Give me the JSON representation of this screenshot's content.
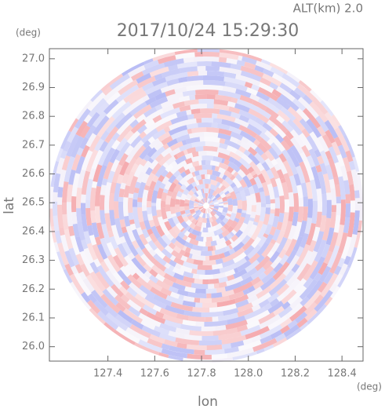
{
  "chart_data": {
    "type": "radar-ppi",
    "title": "2017/10/24 15:29:30",
    "subtitle": "ALT(km) 2.0",
    "x_label": "lon",
    "y_label": "lat",
    "x_unit": "(deg)",
    "y_unit": "(deg)",
    "xlim": [
      127.15,
      128.49
    ],
    "ylim": [
      25.95,
      27.035
    ],
    "xticks": [
      127.4,
      127.6,
      127.8,
      {
        "value": 128.0,
        "label": "128.0"
      },
      128.2,
      128.4
    ],
    "yticks": [
      {
        "value": 26.0,
        "label": "26.0"
      },
      26.1,
      26.2,
      26.3,
      26.4,
      26.5,
      26.6,
      26.7,
      26.8,
      26.9,
      {
        "value": 27.0,
        "label": "27.0"
      }
    ],
    "colors": [
      "#f4a8ac",
      "#b4b8f4"
    ]
  }
}
